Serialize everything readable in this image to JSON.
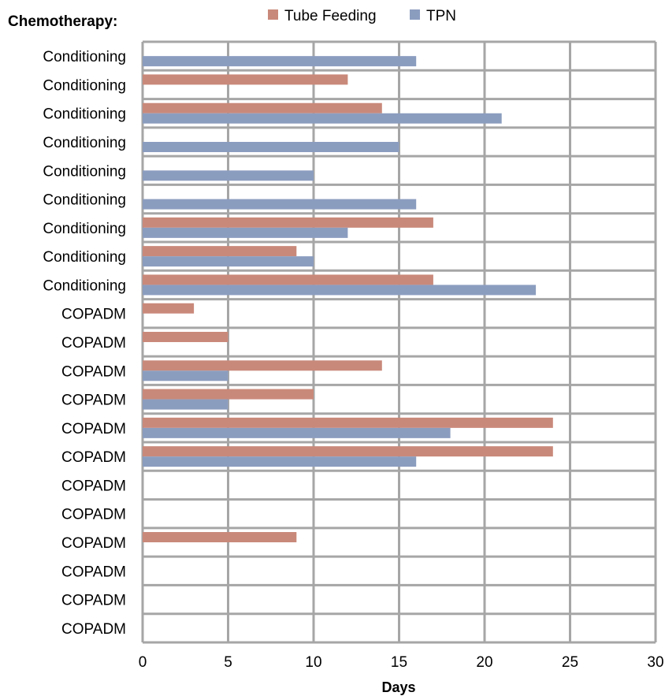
{
  "chart_data": {
    "type": "bar",
    "orientation": "horizontal",
    "title": "",
    "ylabel": "Chemotherapy:",
    "xlabel": "Days",
    "xlim": [
      0,
      30
    ],
    "xticks": [
      0,
      5,
      10,
      15,
      20,
      25,
      30
    ],
    "grid": true,
    "legend_position": "top",
    "categories": [
      "Conditioning",
      "Conditioning",
      "Conditioning",
      "Conditioning",
      "Conditioning",
      "Conditioning",
      "Conditioning",
      "Conditioning",
      "Conditioning",
      "COPADM",
      "COPADM",
      "COPADM",
      "COPADM",
      "COPADM",
      "COPADM",
      "COPADM",
      "COPADM",
      "COPADM",
      "COPADM",
      "COPADM",
      "COPADM"
    ],
    "series": [
      {
        "name": "Tube Feeding",
        "color": "#C9897A",
        "values": [
          0,
          12,
          14,
          0,
          0,
          0,
          17,
          9,
          17,
          3,
          5,
          14,
          10,
          24,
          24,
          0,
          0,
          9,
          0,
          0,
          0
        ]
      },
      {
        "name": "TPN",
        "color": "#8B9DBF",
        "values": [
          16,
          0,
          21,
          15,
          10,
          16,
          12,
          10,
          23,
          0,
          0,
          5,
          5,
          18,
          16,
          0,
          0,
          0,
          0,
          0,
          0
        ]
      }
    ]
  }
}
